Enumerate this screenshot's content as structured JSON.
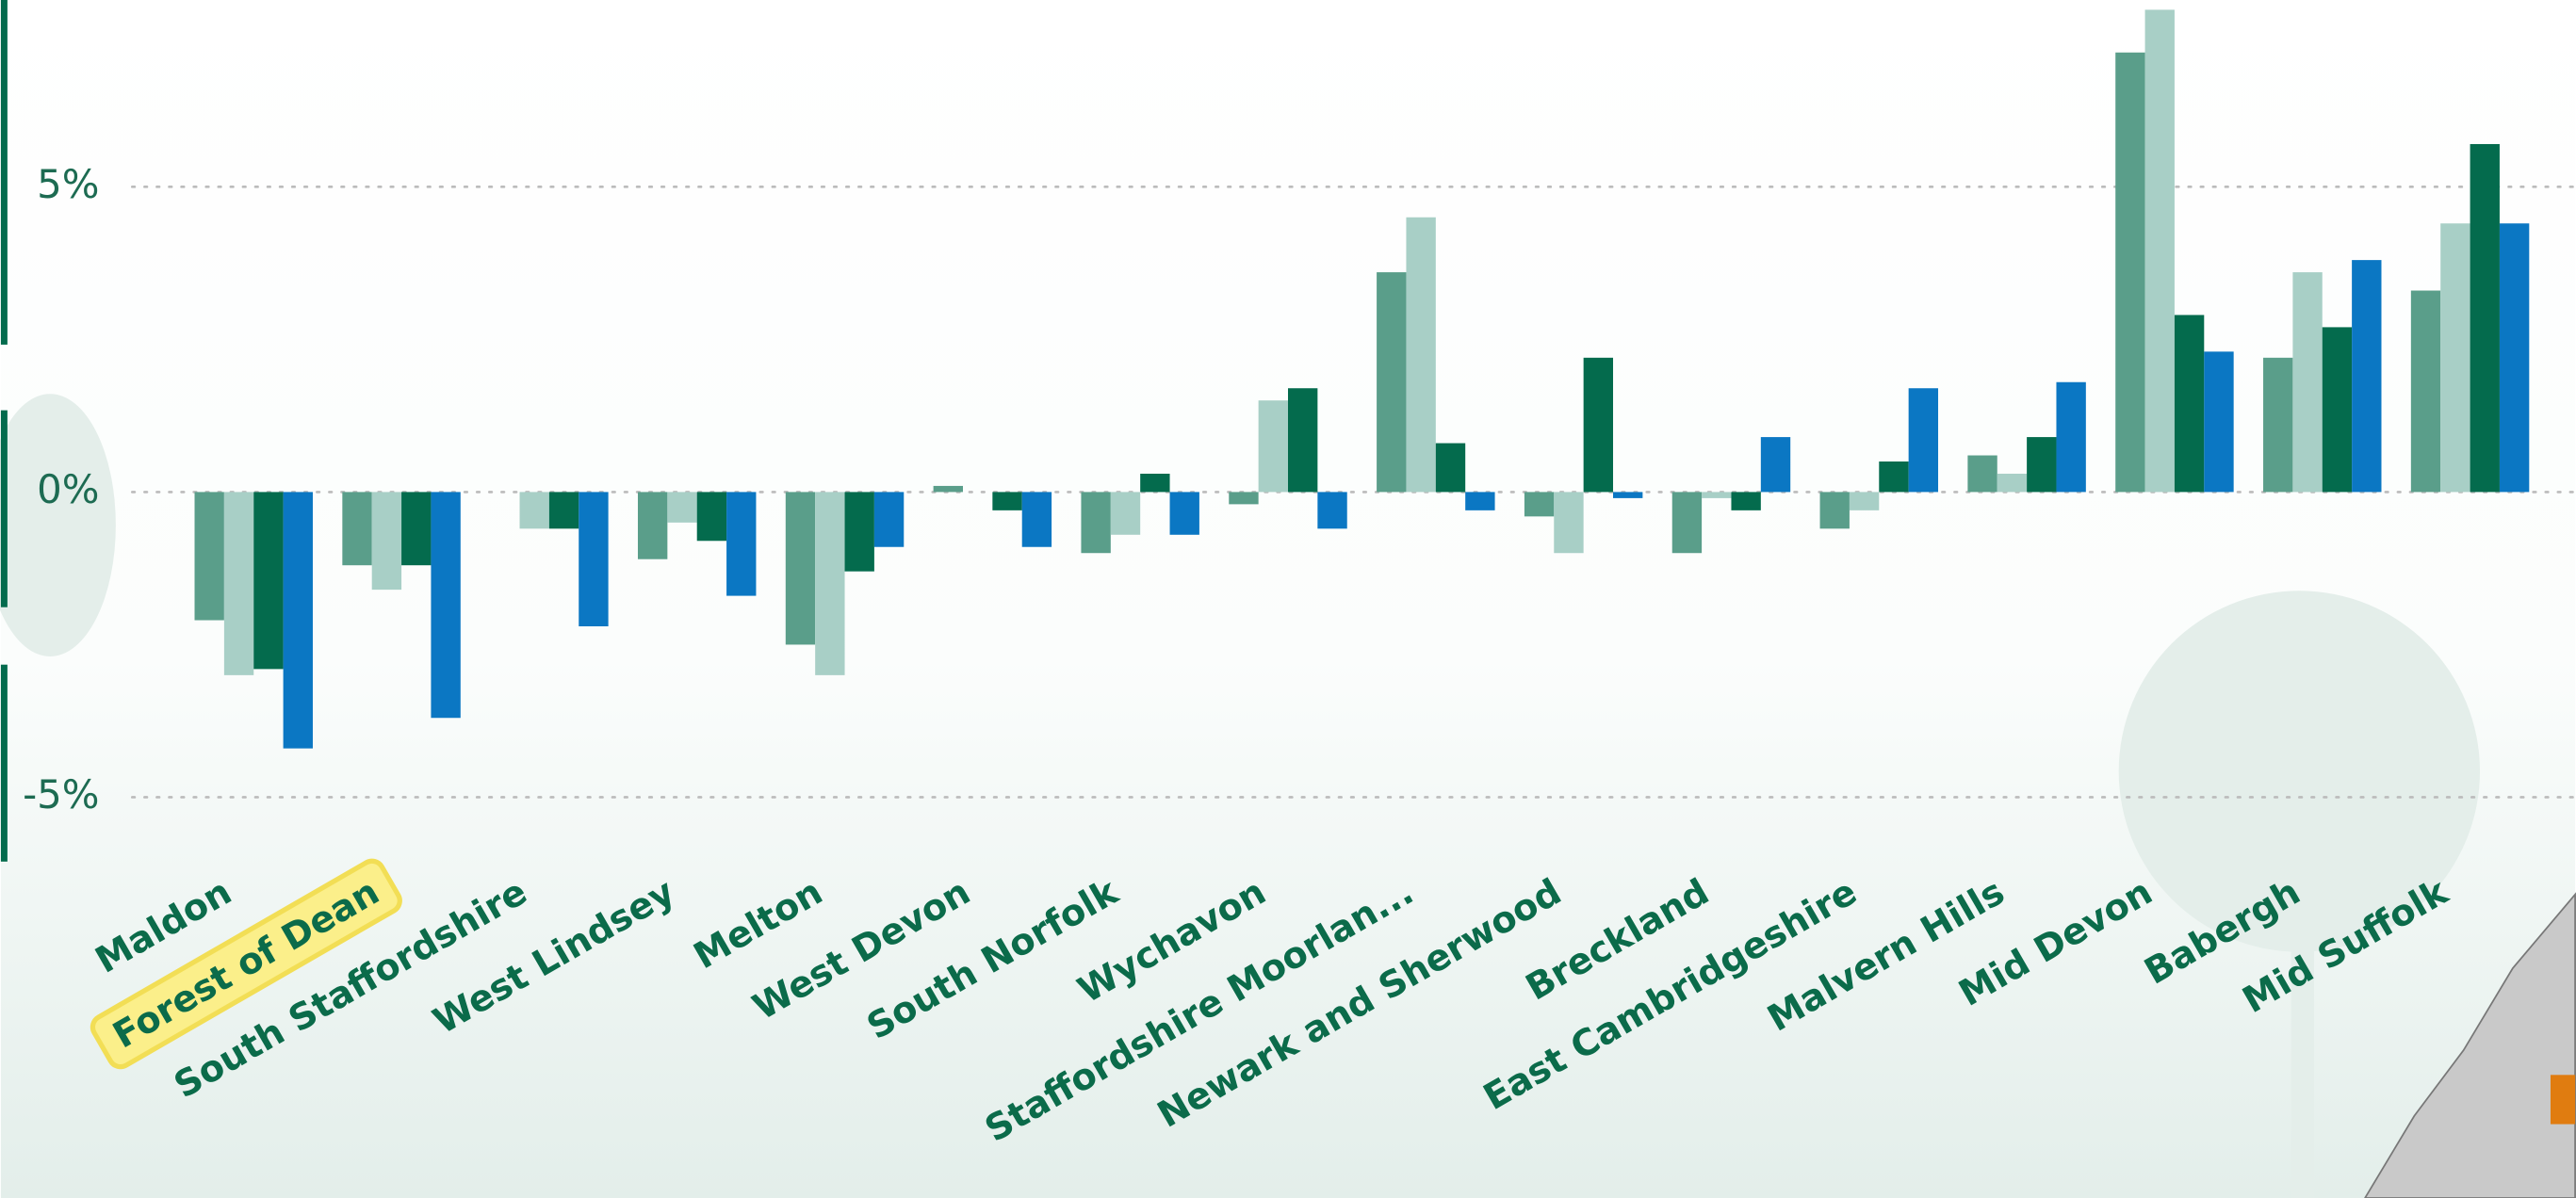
{
  "chart_data": {
    "type": "bar",
    "categories": [
      "Maldon",
      "Forest of Dean",
      "South Staffordshire",
      "West Lindsey",
      "Melton",
      "West Devon",
      "South Norfolk",
      "Wychavon",
      "Staffordshire Moorlan...",
      "Newark and Sherwood",
      "Breckland",
      "East Cambridgeshire",
      "Malvern Hills",
      "Mid Devon",
      "Babergh",
      "Mid Suffolk"
    ],
    "series": [
      {
        "color": "#5a9e8a",
        "values": [
          -2.1,
          -1.2,
          0,
          -1.1,
          -2.5,
          0.1,
          -1.0,
          -0.2,
          3.6,
          -0.4,
          -1.0,
          -0.6,
          0.6,
          7.2,
          2.2,
          3.3
        ]
      },
      {
        "color": "#a8cfc6",
        "values": [
          -3.0,
          -1.6,
          -0.6,
          -0.5,
          -3.0,
          0,
          -0.7,
          1.5,
          4.5,
          -1.0,
          -0.1,
          -0.3,
          0.3,
          7.9,
          3.6,
          4.4
        ]
      },
      {
        "color": "#046b4d",
        "values": [
          -2.9,
          -1.2,
          -0.6,
          -0.8,
          -1.3,
          -0.3,
          0.3,
          1.7,
          0.8,
          2.2,
          -0.3,
          0.5,
          0.9,
          2.9,
          2.7,
          5.7
        ]
      },
      {
        "color": "#0b77c3",
        "values": [
          -4.2,
          -3.7,
          -2.2,
          -1.7,
          -0.9,
          -0.9,
          -0.7,
          -0.6,
          -0.3,
          -0.1,
          0.9,
          1.7,
          1.8,
          2.3,
          3.8,
          4.4
        ]
      }
    ],
    "ylim": [
      -6,
      8.06
    ],
    "yticks": [
      {
        "value": -5,
        "label": "-5%"
      },
      {
        "value": 0,
        "label": "0%"
      },
      {
        "value": 5,
        "label": "5%"
      }
    ],
    "grid": true,
    "highlight_index": 1
  }
}
